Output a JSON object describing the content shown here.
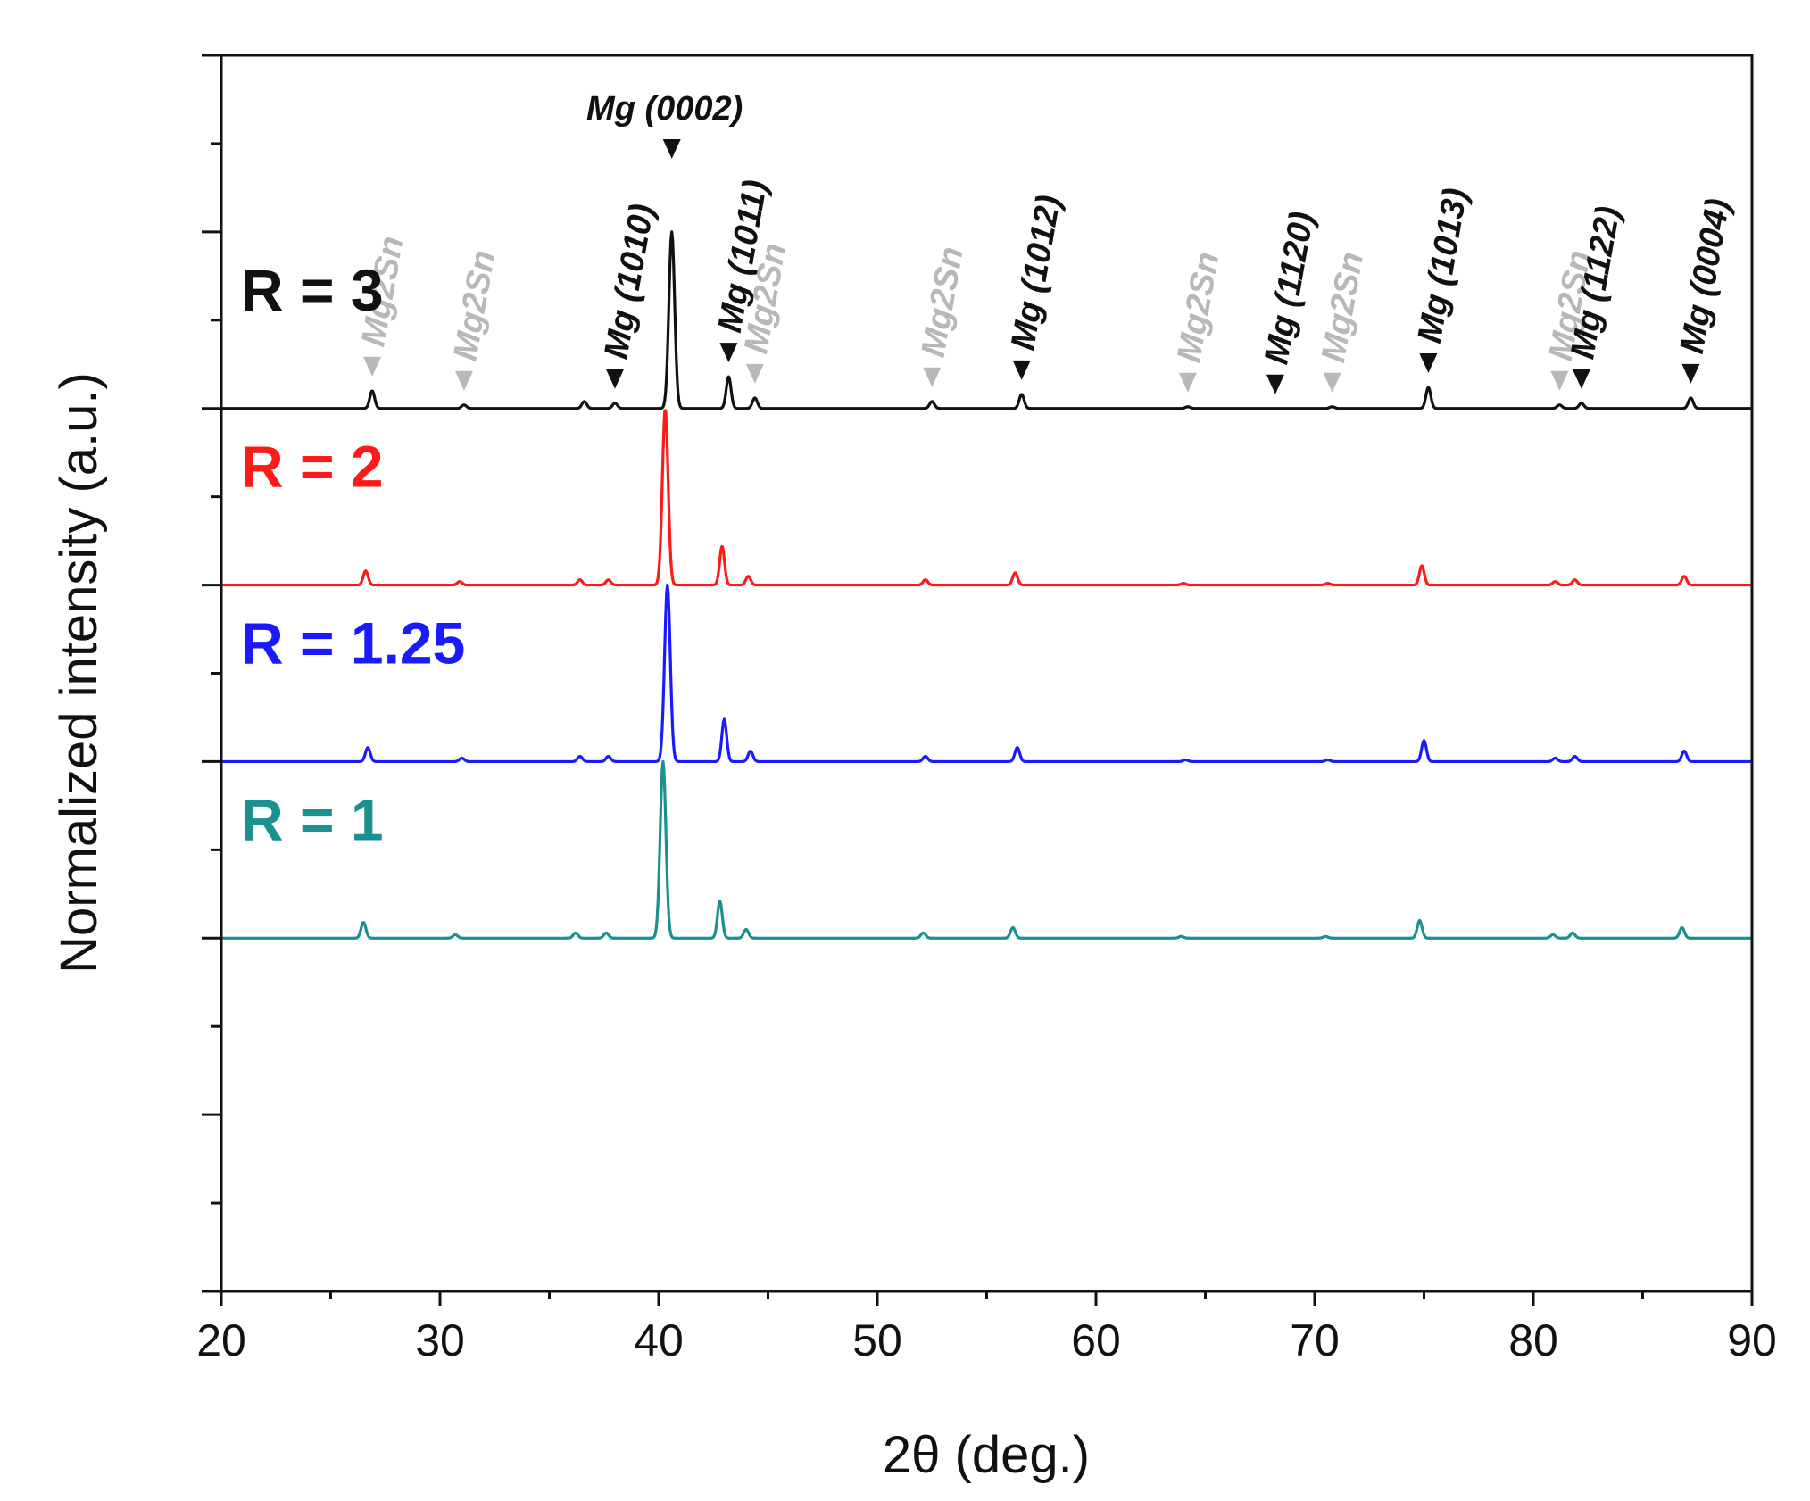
{
  "chart_data": {
    "type": "line",
    "title": "",
    "xlabel": "2θ (deg.)",
    "ylabel": "Normalized intensity (a.u.)",
    "xlim": [
      20,
      90
    ],
    "xticks": [
      "20",
      "30",
      "40",
      "50",
      "60",
      "70",
      "80",
      "90"
    ],
    "ylim": [
      0,
      7
    ],
    "grid": false,
    "legend": "inline labels, top-left of each trace",
    "series": [
      {
        "name": "R = 3",
        "label": "R = 3",
        "color": "#111111",
        "offset": 5,
        "peaks": [
          {
            "x": 26.9,
            "h": 0.1
          },
          {
            "x": 31.1,
            "h": 0.02
          },
          {
            "x": 36.6,
            "h": 0.04
          },
          {
            "x": 38.0,
            "h": 0.03
          },
          {
            "x": 40.6,
            "h": 1.0
          },
          {
            "x": 43.2,
            "h": 0.18
          },
          {
            "x": 44.4,
            "h": 0.06
          },
          {
            "x": 52.5,
            "h": 0.04
          },
          {
            "x": 56.6,
            "h": 0.08
          },
          {
            "x": 64.2,
            "h": 0.01
          },
          {
            "x": 70.8,
            "h": 0.01
          },
          {
            "x": 75.2,
            "h": 0.12
          },
          {
            "x": 81.2,
            "h": 0.02
          },
          {
            "x": 82.2,
            "h": 0.03
          },
          {
            "x": 87.2,
            "h": 0.06
          }
        ]
      },
      {
        "name": "R = 2",
        "label": "R = 2",
        "color": "#ff1a1a",
        "offset": 4,
        "peaks": [
          {
            "x": 26.6,
            "h": 0.08
          },
          {
            "x": 30.9,
            "h": 0.02
          },
          {
            "x": 36.4,
            "h": 0.03
          },
          {
            "x": 37.7,
            "h": 0.03
          },
          {
            "x": 40.3,
            "h": 1.0
          },
          {
            "x": 42.9,
            "h": 0.22
          },
          {
            "x": 44.1,
            "h": 0.05
          },
          {
            "x": 52.2,
            "h": 0.03
          },
          {
            "x": 56.3,
            "h": 0.07
          },
          {
            "x": 64.0,
            "h": 0.01
          },
          {
            "x": 70.6,
            "h": 0.01
          },
          {
            "x": 74.9,
            "h": 0.11
          },
          {
            "x": 81.0,
            "h": 0.02
          },
          {
            "x": 81.9,
            "h": 0.03
          },
          {
            "x": 86.9,
            "h": 0.05
          }
        ]
      },
      {
        "name": "R = 1.25",
        "label": "R = 1.25",
        "color": "#1a1aff",
        "offset": 3,
        "peaks": [
          {
            "x": 26.7,
            "h": 0.08
          },
          {
            "x": 31.0,
            "h": 0.02
          },
          {
            "x": 36.4,
            "h": 0.03
          },
          {
            "x": 37.7,
            "h": 0.03
          },
          {
            "x": 40.4,
            "h": 1.0
          },
          {
            "x": 43.0,
            "h": 0.24
          },
          {
            "x": 44.2,
            "h": 0.06
          },
          {
            "x": 52.2,
            "h": 0.03
          },
          {
            "x": 56.4,
            "h": 0.08
          },
          {
            "x": 64.1,
            "h": 0.01
          },
          {
            "x": 70.6,
            "h": 0.01
          },
          {
            "x": 75.0,
            "h": 0.12
          },
          {
            "x": 81.0,
            "h": 0.02
          },
          {
            "x": 81.9,
            "h": 0.03
          },
          {
            "x": 86.9,
            "h": 0.06
          }
        ]
      },
      {
        "name": "R = 1",
        "label": "R = 1",
        "color": "#1a9090",
        "offset": 2,
        "peaks": [
          {
            "x": 26.5,
            "h": 0.09
          },
          {
            "x": 30.7,
            "h": 0.02
          },
          {
            "x": 36.2,
            "h": 0.03
          },
          {
            "x": 37.6,
            "h": 0.03
          },
          {
            "x": 40.2,
            "h": 1.0
          },
          {
            "x": 42.8,
            "h": 0.21
          },
          {
            "x": 44.0,
            "h": 0.05
          },
          {
            "x": 52.1,
            "h": 0.03
          },
          {
            "x": 56.2,
            "h": 0.06
          },
          {
            "x": 63.9,
            "h": 0.01
          },
          {
            "x": 70.5,
            "h": 0.01
          },
          {
            "x": 74.8,
            "h": 0.1
          },
          {
            "x": 80.9,
            "h": 0.02
          },
          {
            "x": 81.8,
            "h": 0.03
          },
          {
            "x": 86.8,
            "h": 0.06
          }
        ]
      }
    ],
    "annotations": [
      {
        "x": 26.9,
        "label": "Mg2Sn",
        "phase": "Mg2Sn"
      },
      {
        "x": 31.1,
        "label": "Mg2Sn",
        "phase": "Mg2Sn"
      },
      {
        "x": 38.0,
        "label": "Mg (1010)",
        "phase": "Mg"
      },
      {
        "x": 40.6,
        "label": "Mg (0002)",
        "phase": "Mg",
        "horizontal": true
      },
      {
        "x": 43.2,
        "label": "Mg (1011)",
        "phase": "Mg"
      },
      {
        "x": 44.4,
        "label": "Mg2Sn",
        "phase": "Mg2Sn"
      },
      {
        "x": 52.5,
        "label": "Mg2Sn",
        "phase": "Mg2Sn"
      },
      {
        "x": 56.6,
        "label": "Mg (1012)",
        "phase": "Mg"
      },
      {
        "x": 64.2,
        "label": "Mg2Sn",
        "phase": "Mg2Sn"
      },
      {
        "x": 68.2,
        "label": "Mg (1120)",
        "phase": "Mg"
      },
      {
        "x": 70.8,
        "label": "Mg2Sn",
        "phase": "Mg2Sn"
      },
      {
        "x": 75.2,
        "label": "Mg (1013)",
        "phase": "Mg"
      },
      {
        "x": 81.2,
        "label": "Mg2Sn",
        "phase": "Mg2Sn"
      },
      {
        "x": 82.2,
        "label": "Mg (1122)",
        "phase": "Mg"
      },
      {
        "x": 87.2,
        "label": "Mg (0004)",
        "phase": "Mg"
      }
    ],
    "phase_colors": {
      "Mg": "#111111",
      "Mg2Sn": "#b8b8b8"
    }
  }
}
